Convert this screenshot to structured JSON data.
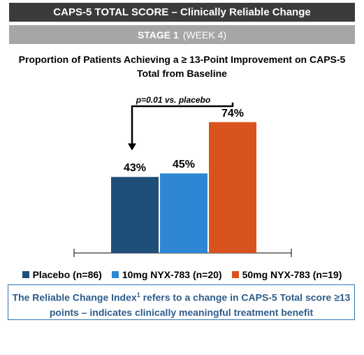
{
  "header": {
    "title": "CAPS-5 TOTAL SCORE – Clinically Reliable Change",
    "stage_label": "STAGE 1",
    "stage_detail": "(WEEK 4)"
  },
  "chart_data": {
    "type": "bar",
    "title": "Proportion of Patients Achieving a ≥ 13-Point Improvement on CAPS-5 Total from Baseline",
    "categories": [
      "Placebo (n=86)",
      "10mg NYX-783 (n=20)",
      "50mg NYX-783 (n=19)"
    ],
    "values": [
      43,
      45,
      74
    ],
    "data_labels": [
      "43%",
      "45%",
      "74%"
    ],
    "colors": [
      "#1f4e79",
      "#2e86d4",
      "#d9531e"
    ],
    "ylim": [
      0,
      100
    ],
    "annotation": "p=0.01 vs. placebo",
    "grid": false,
    "legend_position": "bottom"
  },
  "note": {
    "text_before_sup": "The Reliable Change Index",
    "sup": "1",
    "text_after_sup": " refers to a change in CAPS-5 Total score ≥13 points – indicates clinically meaningful treatment benefit"
  }
}
